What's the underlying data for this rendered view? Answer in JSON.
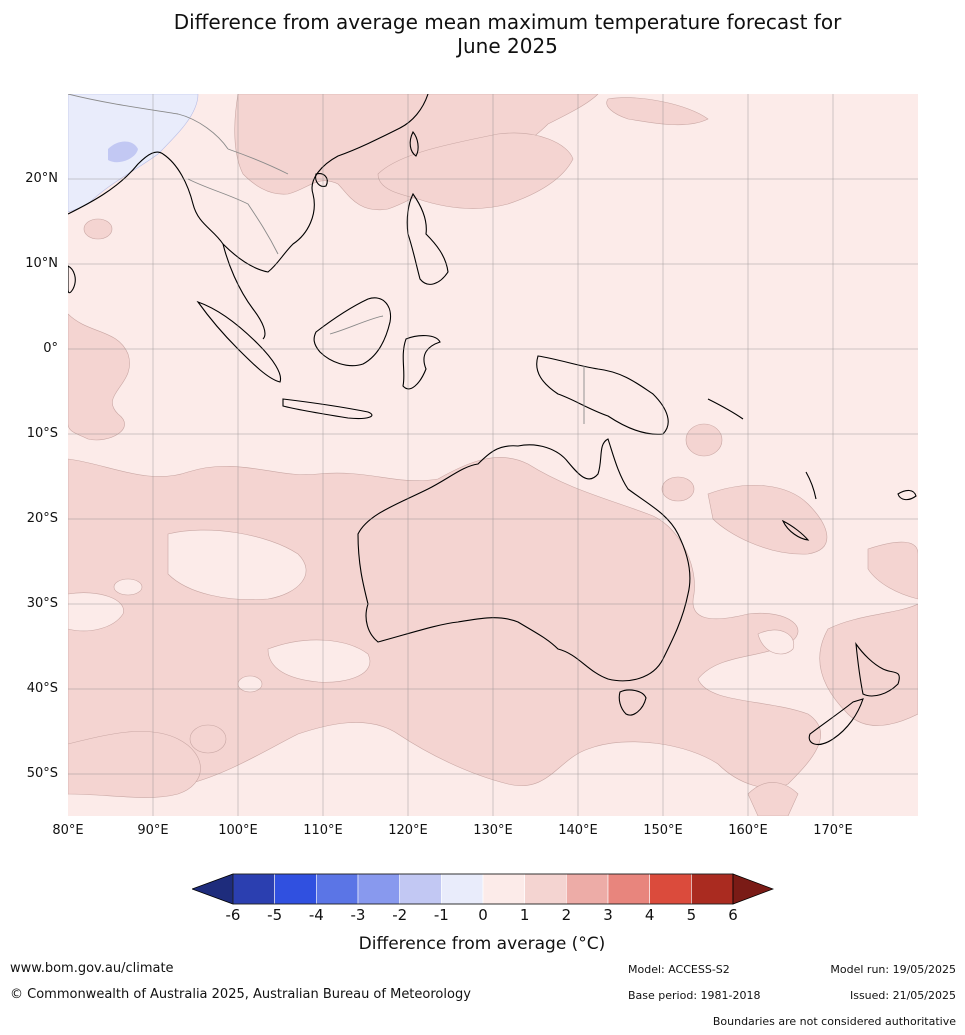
{
  "title_line1": "Difference from average mean maximum temperature forecast for",
  "title_line2": "June 2025",
  "map": {
    "lon_range": [
      80,
      180
    ],
    "lat_range": [
      -55,
      30
    ],
    "grid": true,
    "lat_labels": [
      "20°N",
      "10°N",
      "0°",
      "10°S",
      "20°S",
      "30°S",
      "40°S",
      "50°S"
    ],
    "lon_labels": [
      "80°E",
      "90°E",
      "100°E",
      "110°E",
      "120°E",
      "130°E",
      "140°E",
      "150°E",
      "160°E",
      "170°E"
    ],
    "background_category": "0 to 1",
    "colors": {
      "ocean_0_1": "#fcebe9",
      "band_1_2": "#f4d4d1",
      "band_m1_0": "#e9ecfb",
      "band_m2_m1": "#c2c8f3",
      "coastline": "#000000",
      "borders": "#8a8a8a",
      "grid": "#999999"
    }
  },
  "colorbar": {
    "ticks": [
      "-6",
      "-5",
      "-4",
      "-3",
      "-2",
      "-1",
      "0",
      "1",
      "2",
      "3",
      "4",
      "5",
      "6"
    ],
    "colors": [
      "#1e2c7c",
      "#2b3fb0",
      "#3050e0",
      "#5b75e6",
      "#8899ee",
      "#c2c8f3",
      "#e9ecfb",
      "#fcebe9",
      "#f4d4d1",
      "#edaca7",
      "#e8857d",
      "#db4b3c",
      "#aa2b20",
      "#7a1b16"
    ],
    "label": "Difference from average ($^\\circ$C)",
    "label_display": "Difference from average (°C)"
  },
  "footer": {
    "website": "www.bom.gov.au/climate",
    "copyright": "© Commonwealth of Australia 2025, Australian Bureau of Meteorology",
    "model": "Model: ACCESS-S2",
    "base_period": "Base period: 1981-2018",
    "model_run": "Model run: 19/05/2025",
    "issued": "Issued: 21/05/2025",
    "disclaimer": "Boundaries are not considered authoritative"
  }
}
